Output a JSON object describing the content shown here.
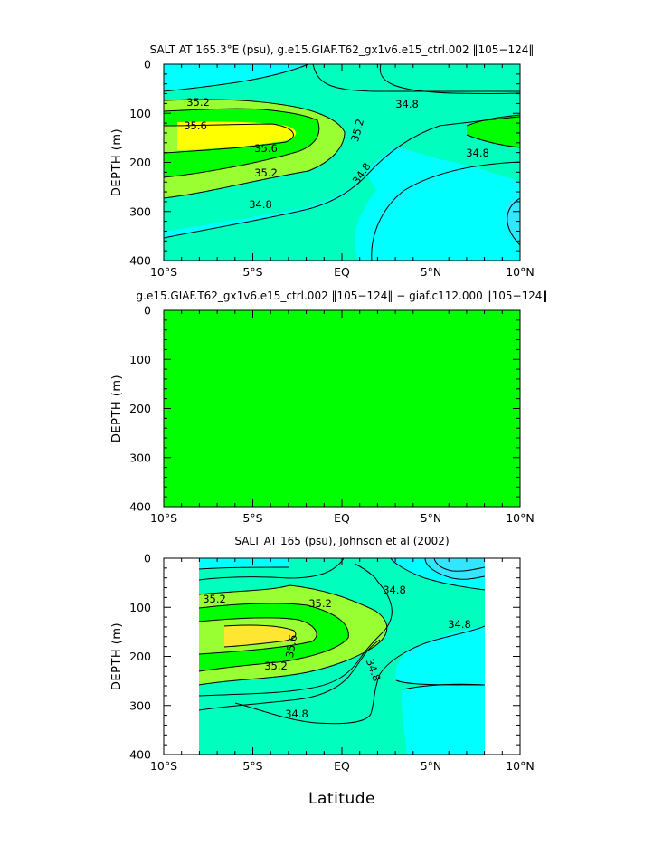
{
  "colors": {
    "cyan": "#00ffff",
    "light_cyan": "#33e6ff",
    "aqua": "#00ffbf",
    "light_green": "#99ff33",
    "bright_green": "#00ff00",
    "dark_green": "#00e600",
    "yellow": "#ffff00",
    "yellow_orange": "#ffe633",
    "contour_line": "#000000",
    "axis": "#000000"
  },
  "x_label": "Latitude",
  "chart_data": [
    {
      "type": "heatmap",
      "title": "SALT AT 165.3°E (psu), g.e15.GIAF.T62_gx1v6.e15_ctrl.002 ‖105−124‖",
      "ylabel": "DEPTH (m)",
      "xlim": [
        -10,
        10
      ],
      "ylim": [
        400,
        0
      ],
      "x_ticks": [
        "10°S",
        "5°S",
        "EQ",
        "5°N",
        "10°N"
      ],
      "y_ticks": [
        "0",
        "100",
        "200",
        "300",
        "400"
      ],
      "contour_labels": [
        "35.2",
        "35.6",
        "35.6",
        "35.2",
        "35.2",
        "34.8",
        "34.8",
        "34.8",
        "34.8"
      ],
      "fill_colors": [
        "cyan",
        "aqua",
        "light_green",
        "bright_green",
        "yellow"
      ]
    },
    {
      "type": "heatmap",
      "title": "g.e15.GIAF.T62_gx1v6.e15_ctrl.002 ‖105−124‖ − giaf.c112.000 ‖105−124‖",
      "ylabel": "DEPTH (m)",
      "xlim": [
        -10,
        10
      ],
      "ylim": [
        400,
        0
      ],
      "x_ticks": [
        "10°S",
        "5°S",
        "EQ",
        "5°N",
        "10°N"
      ],
      "y_ticks": [
        "0",
        "100",
        "200",
        "300",
        "400"
      ],
      "fill_colors": [
        "bright_green"
      ]
    },
    {
      "type": "heatmap",
      "title": "SALT AT 165 (psu), Johnson et al (2002)",
      "ylabel": "DEPTH (m)",
      "xlim": [
        -10,
        10
      ],
      "ylim": [
        400,
        0
      ],
      "data_xrange": [
        -8,
        8
      ],
      "x_ticks": [
        "10°S",
        "5°S",
        "EQ",
        "5°N",
        "10°N"
      ],
      "y_ticks": [
        "0",
        "100",
        "200",
        "300",
        "400"
      ],
      "contour_labels": [
        "35.2",
        "35.2",
        "34.8",
        "34.8",
        "35.6",
        "35.2",
        "34.8",
        "34.8"
      ],
      "fill_colors": [
        "light_cyan",
        "cyan",
        "aqua",
        "light_green",
        "bright_green",
        "yellow_orange"
      ]
    }
  ]
}
